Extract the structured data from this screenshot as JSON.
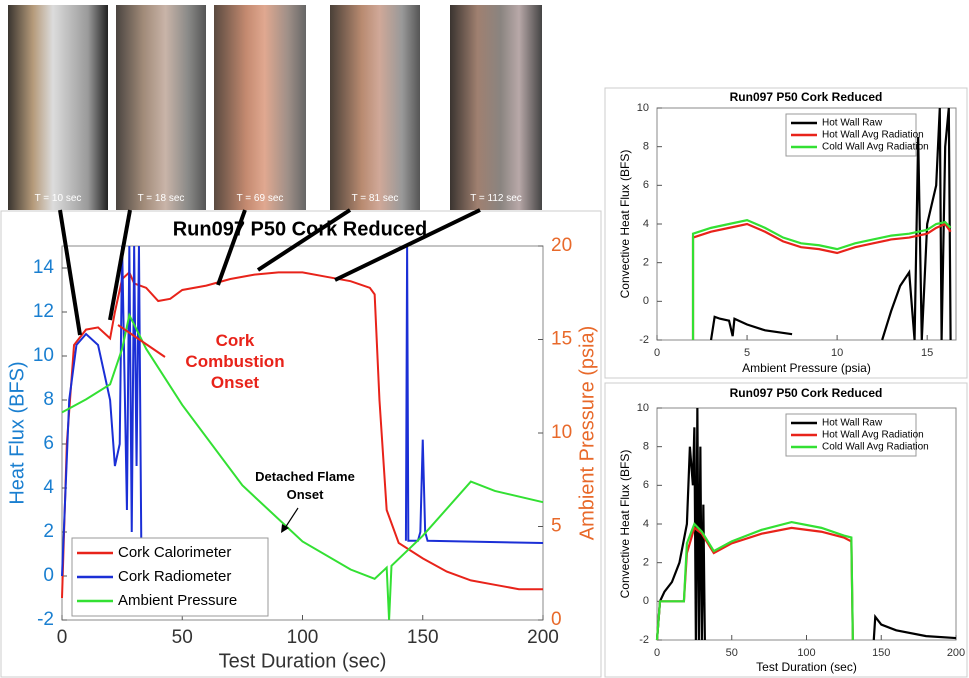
{
  "photo_labels": [
    "T = 10 sec",
    "T = 18 sec",
    "T = 69 sec",
    "T = 81 sec",
    "T = 112 sec"
  ],
  "chart_data": [
    {
      "type": "line",
      "title": "Run097 P50 Cork Reduced",
      "x_label": "Test Duration (sec)",
      "y_label": "Heat Flux (BFS)",
      "y2_label": "Ambient Pressure (psia)",
      "annotations": [
        "Cork Combustion Onset",
        "Detached Flame Onset"
      ],
      "xlim": [
        0,
        200
      ],
      "xticks": [
        0,
        50,
        100,
        150,
        200
      ],
      "ylim": [
        -2,
        15
      ],
      "yticks": [
        -2,
        0,
        2,
        4,
        6,
        8,
        10,
        12,
        14
      ],
      "y2lim": [
        0,
        20
      ],
      "y2ticks": [
        0,
        5,
        10,
        15,
        20
      ],
      "legend": "lower left",
      "series": [
        {
          "name": "Cork Calorimeter",
          "color": "#e8231a",
          "x": [
            0,
            2,
            5,
            10,
            15,
            20,
            22,
            25,
            28,
            30,
            35,
            40,
            45,
            50,
            60,
            70,
            80,
            90,
            100,
            110,
            120,
            128,
            130,
            132,
            135,
            140,
            150,
            160,
            170,
            180,
            190,
            200
          ],
          "values": [
            -1,
            6,
            10.5,
            11.2,
            11.3,
            10.8,
            12,
            13.5,
            13.8,
            13.3,
            13.1,
            12.5,
            12.6,
            13,
            13.2,
            13.5,
            13.7,
            13.8,
            13.8,
            13.6,
            13.4,
            13.1,
            12.8,
            8,
            3,
            1.5,
            0.8,
            0.2,
            -0.2,
            -0.4,
            -0.6,
            -0.6
          ]
        },
        {
          "name": "Cork Radiometer",
          "color": "#1b2fd6",
          "x": [
            0,
            3,
            6,
            10,
            15,
            18,
            20,
            22,
            24,
            25,
            27,
            28,
            29,
            30,
            31,
            32,
            33,
            null,
            143,
            143.5,
            144,
            148,
            149,
            150,
            151,
            152,
            200
          ],
          "values": [
            0,
            8,
            10.5,
            11,
            10.5,
            9,
            8,
            5,
            6,
            15,
            3,
            15,
            2,
            15,
            5,
            15,
            1,
            null,
            1.6,
            15,
            1.6,
            1.6,
            2,
            6.2,
            2,
            1.6,
            1.5
          ]
        },
        {
          "name": "Ambient Pressure",
          "color": "#33e033",
          "axis": "y2",
          "x": [
            0,
            10,
            20,
            25,
            28,
            30,
            35,
            50,
            75,
            100,
            120,
            130,
            135,
            136,
            137,
            150,
            170,
            180,
            200
          ],
          "values": [
            11.1,
            11.8,
            12.6,
            14.5,
            16.3,
            15.8,
            14.5,
            11.5,
            7.2,
            4.2,
            2.7,
            2.2,
            2.8,
            0,
            2.9,
            4.5,
            7.4,
            6.9,
            6.3
          ]
        }
      ]
    },
    {
      "type": "line",
      "title": "Run097 P50 Cork Reduced",
      "x_label": "Ambient Pressure (psia)",
      "y_label": "Convective Heat Flux (BFS)",
      "xlim": [
        0,
        16.6
      ],
      "xticks": [
        0,
        5,
        10,
        15
      ],
      "ylim": [
        -2,
        10
      ],
      "yticks": [
        -2,
        0,
        2,
        4,
        6,
        8,
        10
      ],
      "legend": "upper right",
      "series": [
        {
          "name": "Hot Wall Raw",
          "color": "#000000",
          "x": [
            3,
            3.2,
            3.5,
            4,
            4.2,
            4.3,
            5,
            6,
            7.5,
            null,
            12.5,
            13,
            13.5,
            14,
            14.3,
            14.5,
            14.7,
            15,
            15.5,
            15.7,
            15.8,
            16,
            16.2,
            16.3
          ],
          "values": [
            -2,
            -0.8,
            -0.9,
            -1,
            -1.8,
            -0.9,
            -1.2,
            -1.5,
            -1.7,
            null,
            -2,
            -0.5,
            0.8,
            1.5,
            -2,
            8.5,
            -2,
            4,
            6,
            10,
            -2,
            8,
            10,
            -2
          ]
        },
        {
          "name": "Hot Wall Avg Radiation",
          "color": "#e8231a",
          "x": [
            2,
            2,
            3,
            4,
            5,
            6,
            7,
            8,
            9,
            10,
            11,
            12,
            13,
            14,
            15,
            15.5,
            16,
            16.3
          ],
          "values": [
            -2,
            3.3,
            3.6,
            3.8,
            4,
            3.6,
            3.1,
            2.8,
            2.7,
            2.5,
            2.8,
            3,
            3.2,
            3.3,
            3.5,
            3.8,
            4,
            3.6
          ]
        },
        {
          "name": "Cold Wall Avg Radiation",
          "color": "#33e033",
          "x": [
            2,
            2,
            3,
            4,
            5,
            6,
            7,
            8,
            9,
            10,
            11,
            12,
            13,
            14,
            15,
            15.5,
            16,
            16.3
          ],
          "values": [
            -2,
            3.5,
            3.8,
            4,
            4.2,
            3.8,
            3.3,
            3,
            2.9,
            2.7,
            3,
            3.2,
            3.4,
            3.5,
            3.7,
            4,
            4.1,
            3.8
          ]
        }
      ]
    },
    {
      "type": "line",
      "title": "Run097 P50 Cork Reduced",
      "x_label": "Test Duration (sec)",
      "y_label": "Convective Heat Flux (BFS)",
      "xlim": [
        0,
        200
      ],
      "xticks": [
        0,
        50,
        100,
        150,
        200
      ],
      "ylim": [
        -2,
        10
      ],
      "yticks": [
        -2,
        0,
        2,
        4,
        6,
        8,
        10
      ],
      "legend": "upper right",
      "series": [
        {
          "name": "Hot Wall Raw",
          "color": "#000000",
          "x": [
            0,
            2,
            5,
            10,
            15,
            20,
            22,
            24,
            25,
            26,
            27,
            28,
            29,
            30,
            31,
            32,
            null,
            145,
            146,
            150,
            160,
            180,
            200
          ],
          "values": [
            -2,
            0,
            0.5,
            1,
            2,
            4,
            8,
            6,
            9,
            -2,
            10,
            -2,
            8,
            -2,
            5,
            -2,
            null,
            -2,
            -0.8,
            -1.2,
            -1.5,
            -1.8,
            -1.9
          ]
        },
        {
          "name": "Hot Wall Avg Radiation",
          "color": "#e8231a",
          "x": [
            0,
            2,
            18,
            20,
            25,
            30,
            38,
            50,
            70,
            90,
            110,
            125,
            130,
            131
          ],
          "values": [
            -2,
            0,
            0,
            2.5,
            3.8,
            3.5,
            2.5,
            3,
            3.5,
            3.8,
            3.6,
            3.3,
            3.1,
            -2
          ]
        },
        {
          "name": "Cold Wall Avg Radiation",
          "color": "#33e033",
          "x": [
            0,
            2,
            18,
            20,
            25,
            30,
            38,
            50,
            70,
            90,
            110,
            125,
            130,
            131
          ],
          "values": [
            -2,
            0,
            0,
            3,
            4,
            3.6,
            2.6,
            3.1,
            3.7,
            4.1,
            3.8,
            3.4,
            3.3,
            -2
          ]
        }
      ]
    }
  ]
}
